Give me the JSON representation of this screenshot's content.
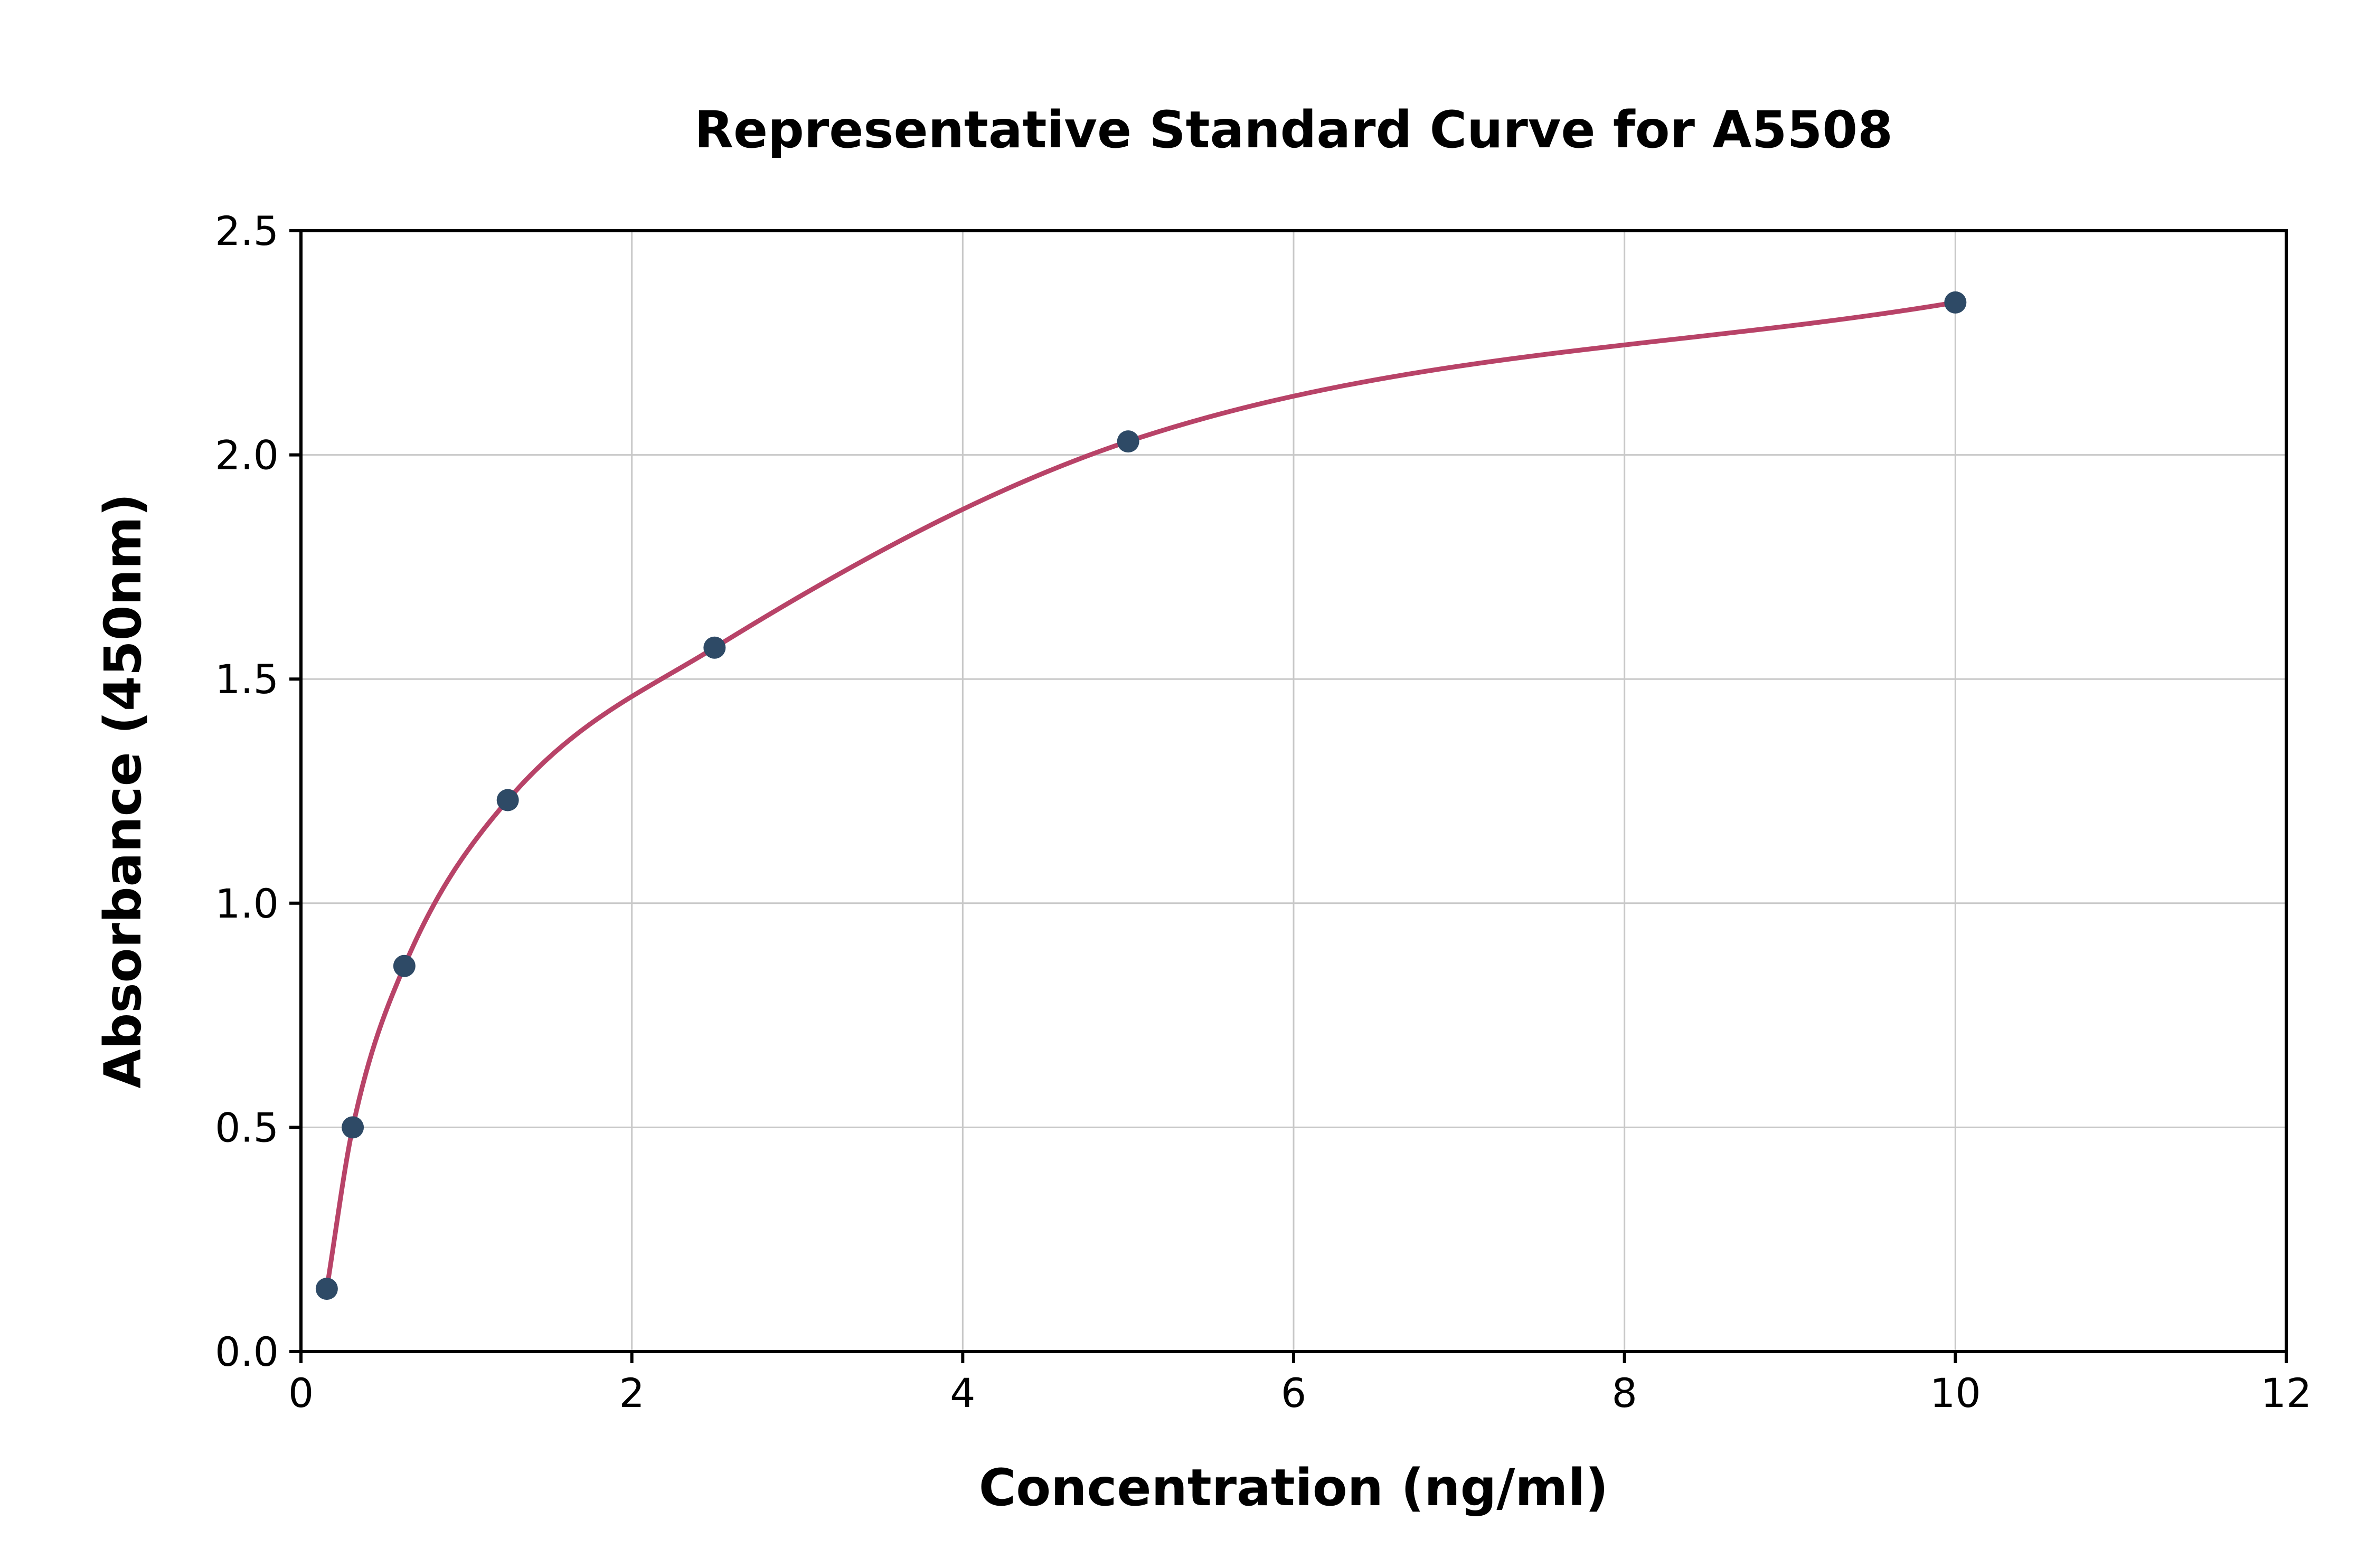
{
  "chart_data": {
    "type": "scatter",
    "title": "Representative Standard Curve for A5508",
    "xlabel": "Concentration (ng/ml)",
    "ylabel": "Absorbance (450nm)",
    "xlim": [
      0,
      12
    ],
    "ylim": [
      0,
      2.5
    ],
    "x_ticks": [
      0,
      2,
      4,
      6,
      8,
      10,
      12
    ],
    "x_tick_labels": [
      "0",
      "2",
      "4",
      "6",
      "8",
      "10",
      "12"
    ],
    "y_ticks": [
      0,
      0.5,
      1.0,
      1.5,
      2.0,
      2.5
    ],
    "y_tick_labels": [
      "0.0",
      "0.5",
      "1.0",
      "1.5",
      "2.0",
      "2.5"
    ],
    "grid": true,
    "legend": "none",
    "points": [
      {
        "x": 0.156,
        "y": 0.14
      },
      {
        "x": 0.313,
        "y": 0.5
      },
      {
        "x": 0.625,
        "y": 0.86
      },
      {
        "x": 1.25,
        "y": 1.23
      },
      {
        "x": 2.5,
        "y": 1.57
      },
      {
        "x": 5,
        "y": 2.03
      },
      {
        "x": 10,
        "y": 2.34
      }
    ],
    "colors": {
      "curve": "#b84368",
      "point": "#2e4a66",
      "grid": "#c8c8c8",
      "spine": "#000000",
      "background": "#ffffff"
    }
  }
}
